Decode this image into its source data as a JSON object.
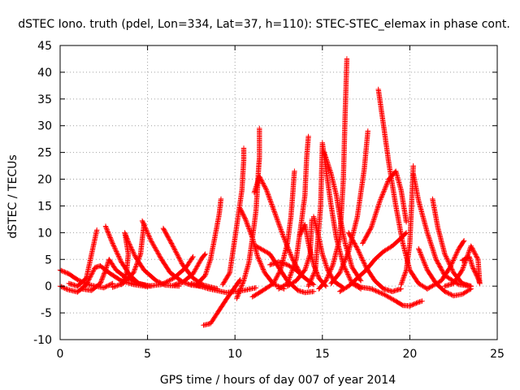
{
  "chart_data": {
    "type": "scatter",
    "title": "dSTEC Iono. truth (pdel, Lon=334, Lat=37, h=110): STEC-STEC_elemax in phase cont.",
    "xlabel": "GPS time / hours of day 007 of year 2014",
    "ylabel": "dSTEC  / TECUs",
    "xlim": [
      0,
      25
    ],
    "ylim": [
      -10,
      45
    ],
    "xticks": [
      0,
      5,
      10,
      15,
      20,
      25
    ],
    "yticks": [
      -10,
      -5,
      0,
      5,
      10,
      15,
      20,
      25,
      30,
      35,
      40,
      45
    ],
    "grid": true,
    "marker": "+",
    "color": "#ff0000",
    "series": [
      {
        "points": [
          [
            0,
            3
          ],
          [
            0.5,
            2.3
          ],
          [
            1,
            1.2
          ],
          [
            1.5,
            0.4
          ],
          [
            2,
            0
          ],
          [
            2.5,
            -0.3
          ],
          [
            3,
            0.5
          ]
        ]
      },
      {
        "points": [
          [
            0,
            0
          ],
          [
            0.4,
            -0.6
          ],
          [
            1,
            -1.1
          ],
          [
            1.5,
            0.3
          ],
          [
            2,
            3.5
          ],
          [
            2.3,
            3.8
          ],
          [
            2.8,
            2.5
          ],
          [
            3.5,
            1
          ],
          [
            4.2,
            0.3
          ],
          [
            5,
            -0.1
          ]
        ]
      },
      {
        "points": [
          [
            0.5,
            0.5
          ],
          [
            1,
            0
          ],
          [
            1.5,
            1.5
          ],
          [
            1.8,
            6
          ],
          [
            2.1,
            10.5
          ]
        ]
      },
      {
        "points": [
          [
            2.6,
            11.2
          ],
          [
            3,
            8
          ],
          [
            3.5,
            4.5
          ],
          [
            4,
            2
          ],
          [
            4.5,
            0.5
          ],
          [
            5,
            0
          ]
        ]
      },
      {
        "points": [
          [
            1.2,
            -0.5
          ],
          [
            1.8,
            -0.8
          ],
          [
            2.3,
            0.5
          ],
          [
            2.6,
            3
          ],
          [
            2.8,
            5
          ],
          [
            3.2,
            3
          ],
          [
            3.8,
            1.5
          ],
          [
            4.5,
            0.5
          ],
          [
            5.2,
            0
          ]
        ]
      },
      {
        "points": [
          [
            3.5,
            0.3
          ],
          [
            3.8,
            2.5
          ],
          [
            3.9,
            6
          ],
          [
            3.7,
            10
          ],
          [
            3.9,
            8.3
          ],
          [
            4.3,
            5.5
          ],
          [
            4.8,
            3
          ],
          [
            5.5,
            1
          ],
          [
            6,
            0.2
          ],
          [
            6.8,
            0
          ]
        ]
      },
      {
        "points": [
          [
            3,
            -0.2
          ],
          [
            3.6,
            0.5
          ],
          [
            4.2,
            2.5
          ],
          [
            4.6,
            6
          ],
          [
            4.8,
            11.6
          ]
        ]
      },
      {
        "points": [
          [
            4.7,
            12.2
          ],
          [
            5.2,
            8.5
          ],
          [
            5.8,
            5
          ],
          [
            6.3,
            2.5
          ],
          [
            7,
            0.8
          ],
          [
            7.5,
            0.2
          ],
          [
            8,
            0
          ]
        ]
      },
      {
        "points": [
          [
            5,
            0
          ],
          [
            5.8,
            0.3
          ],
          [
            6.5,
            1.5
          ],
          [
            7.2,
            3.5
          ],
          [
            7.6,
            5.5
          ]
        ]
      },
      {
        "points": [
          [
            5.9,
            10.8
          ],
          [
            6.4,
            7.8
          ],
          [
            7,
            4
          ],
          [
            7.6,
            1.5
          ],
          [
            8.2,
            0.2
          ],
          [
            9,
            -0.5
          ]
        ]
      },
      {
        "points": [
          [
            6.5,
            0.2
          ],
          [
            7,
            0.7
          ],
          [
            7.6,
            2.3
          ],
          [
            8.1,
            5.2
          ],
          [
            8.3,
            6
          ]
        ]
      },
      {
        "points": [
          [
            7.8,
            0.3
          ],
          [
            8.3,
            2
          ],
          [
            8.6,
            5
          ],
          [
            8.9,
            10
          ],
          [
            9.1,
            13.5
          ],
          [
            9.2,
            16.3
          ]
        ]
      },
      {
        "points": [
          [
            7.5,
            0.5
          ],
          [
            8.5,
            -0.5
          ],
          [
            9.5,
            -1.2
          ],
          [
            10.5,
            -0.8
          ],
          [
            11.2,
            -0.3
          ]
        ]
      },
      {
        "points": [
          [
            8.2,
            -7.3
          ],
          [
            8.6,
            -7
          ],
          [
            9,
            -5
          ],
          [
            9.5,
            -2.5
          ],
          [
            10,
            -0.2
          ],
          [
            10.3,
            1.2
          ]
        ]
      },
      {
        "points": [
          [
            9.3,
            0.3
          ],
          [
            9.7,
            2.5
          ],
          [
            10,
            9
          ],
          [
            10.2,
            13.5
          ],
          [
            10.4,
            18
          ],
          [
            10.5,
            23.5
          ],
          [
            10.5,
            25.8
          ]
        ]
      },
      {
        "points": [
          [
            10.1,
            -2.3
          ],
          [
            10.5,
            1
          ],
          [
            10.8,
            4.5
          ],
          [
            11,
            9
          ],
          [
            11.2,
            14
          ],
          [
            11.3,
            19
          ],
          [
            11.35,
            22
          ],
          [
            11.4,
            24
          ],
          [
            11.4,
            29.5
          ]
        ]
      },
      {
        "points": [
          [
            10.3,
            14.5
          ],
          [
            10.6,
            12.5
          ],
          [
            11,
            9
          ],
          [
            11.3,
            5.5
          ],
          [
            11.7,
            2.5
          ],
          [
            12.2,
            0.4
          ],
          [
            12.8,
            -0.5
          ]
        ]
      },
      {
        "points": [
          [
            11,
            -2
          ],
          [
            11.6,
            -0.8
          ],
          [
            12.2,
            0.5
          ],
          [
            12.6,
            3
          ],
          [
            13,
            8
          ],
          [
            13.2,
            13
          ],
          [
            13.3,
            17
          ],
          [
            13.4,
            21.5
          ]
        ]
      },
      {
        "points": [
          [
            11.1,
            17.5
          ],
          [
            11.4,
            20.5
          ],
          [
            11.8,
            18
          ],
          [
            12.3,
            13.5
          ],
          [
            12.8,
            9
          ],
          [
            13.3,
            5
          ],
          [
            13.8,
            2
          ]
        ]
      },
      {
        "points": [
          [
            11.2,
            7.5
          ],
          [
            12,
            6
          ],
          [
            12.5,
            3.5
          ],
          [
            13,
            1
          ],
          [
            13.6,
            -0.8
          ],
          [
            14,
            -1.2
          ],
          [
            14.5,
            -1
          ]
        ]
      },
      {
        "points": [
          [
            12,
            4
          ],
          [
            12.5,
            4.5
          ],
          [
            13,
            4
          ],
          [
            13.5,
            3
          ],
          [
            14,
            1.5
          ],
          [
            14.5,
            0.3
          ]
        ]
      },
      {
        "points": [
          [
            12.5,
            -0.5
          ],
          [
            13,
            0.5
          ],
          [
            13.5,
            5
          ],
          [
            13.8,
            12
          ],
          [
            14,
            17
          ],
          [
            14.1,
            24
          ],
          [
            14.2,
            28
          ]
        ]
      },
      {
        "points": [
          [
            13.7,
            9.5
          ],
          [
            14,
            11.5
          ],
          [
            14.2,
            8
          ],
          [
            14.5,
            4
          ],
          [
            14.8,
            1.5
          ],
          [
            15.2,
            0
          ]
        ]
      },
      {
        "points": [
          [
            13,
            0
          ],
          [
            13.5,
            1
          ],
          [
            14,
            3
          ],
          [
            14.3,
            6
          ],
          [
            14.4,
            12.5
          ]
        ]
      },
      {
        "points": [
          [
            14.5,
            13
          ],
          [
            14.8,
            9
          ],
          [
            15,
            6
          ],
          [
            15.3,
            3
          ],
          [
            15.7,
            0.8
          ],
          [
            16.2,
            -0.3
          ]
        ]
      },
      {
        "points": [
          [
            14.2,
            0
          ],
          [
            14.6,
            3
          ],
          [
            14.9,
            15
          ],
          [
            15,
            26.8
          ],
          [
            15.2,
            22
          ],
          [
            15.5,
            15
          ],
          [
            15.8,
            9
          ],
          [
            16.2,
            4
          ],
          [
            16.7,
            0.5
          ],
          [
            17.2,
            -0.5
          ]
        ]
      },
      {
        "points": [
          [
            15.1,
            25
          ],
          [
            15.3,
            23
          ],
          [
            15.5,
            21
          ],
          [
            15.8,
            17
          ],
          [
            16,
            13
          ],
          [
            16.3,
            8
          ],
          [
            16.7,
            3.5
          ],
          [
            17.2,
            1
          ]
        ]
      },
      {
        "points": [
          [
            14.8,
            -0.5
          ],
          [
            15.2,
            1
          ],
          [
            15.6,
            4
          ],
          [
            16,
            9
          ],
          [
            16.2,
            20
          ],
          [
            16.3,
            32
          ],
          [
            16.4,
            42.5
          ]
        ]
      },
      {
        "points": [
          [
            15.5,
            0.5
          ],
          [
            16,
            2.5
          ],
          [
            16.5,
            6.5
          ],
          [
            17,
            13
          ],
          [
            17.4,
            22
          ],
          [
            17.6,
            29
          ]
        ]
      },
      {
        "points": [
          [
            16,
            -1
          ],
          [
            16.5,
            0
          ],
          [
            17,
            1.5
          ],
          [
            17.5,
            3
          ],
          [
            18,
            5
          ],
          [
            18.5,
            6.5
          ],
          [
            19,
            7.5
          ],
          [
            19.5,
            9
          ],
          [
            19.8,
            10
          ]
        ]
      },
      {
        "points": [
          [
            16.5,
            10
          ],
          [
            17,
            7
          ],
          [
            17.5,
            3.5
          ],
          [
            18,
            1
          ],
          [
            18.5,
            -0.5
          ],
          [
            19,
            -1
          ],
          [
            19.5,
            -0.5
          ]
        ]
      },
      {
        "points": [
          [
            16.8,
            0.5
          ],
          [
            17.2,
            -0.2
          ],
          [
            17.8,
            -0.5
          ],
          [
            18.5,
            -1.5
          ],
          [
            19.2,
            -2.8
          ],
          [
            19.6,
            -3.6
          ],
          [
            20,
            -3.7
          ],
          [
            20.5,
            -3
          ],
          [
            20.7,
            -2.8
          ]
        ]
      },
      {
        "points": [
          [
            18.2,
            36.8
          ],
          [
            18.5,
            30
          ],
          [
            18.8,
            23
          ],
          [
            19.2,
            15
          ],
          [
            19.6,
            8
          ],
          [
            20,
            3
          ],
          [
            20.5,
            0.5
          ],
          [
            21,
            -0.5
          ]
        ]
      },
      {
        "points": [
          [
            17.3,
            8
          ],
          [
            17.8,
            11
          ],
          [
            18.3,
            16
          ],
          [
            18.8,
            20
          ],
          [
            19.2,
            21.5
          ],
          [
            19.5,
            18
          ],
          [
            19.8,
            12
          ]
        ]
      },
      {
        "points": [
          [
            19.5,
            0.3
          ],
          [
            19.8,
            3
          ],
          [
            20,
            8
          ],
          [
            20.1,
            15
          ],
          [
            20.2,
            22.5
          ]
        ]
      },
      {
        "points": [
          [
            20.2,
            21
          ],
          [
            20.5,
            16
          ],
          [
            21,
            10
          ],
          [
            21.5,
            5
          ],
          [
            22,
            2
          ],
          [
            22.8,
            0.3
          ],
          [
            23.5,
            0
          ]
        ]
      },
      {
        "points": [
          [
            20.5,
            7
          ],
          [
            21,
            3
          ],
          [
            21.5,
            0.5
          ],
          [
            22,
            -1
          ],
          [
            22.5,
            -1.8
          ],
          [
            23,
            -1.5
          ],
          [
            23.5,
            -0.5
          ]
        ]
      },
      {
        "points": [
          [
            21.3,
            16.3
          ],
          [
            21.6,
            11
          ],
          [
            22,
            6
          ],
          [
            22.5,
            2.5
          ],
          [
            23,
            0.5
          ],
          [
            23.5,
            0
          ]
        ]
      },
      {
        "points": [
          [
            21,
            -0.5
          ],
          [
            21.8,
            1
          ],
          [
            22.3,
            3.5
          ],
          [
            22.8,
            7
          ],
          [
            23.1,
            8.5
          ]
        ]
      },
      {
        "points": [
          [
            22,
            0
          ],
          [
            22.5,
            0.5
          ],
          [
            23,
            3
          ],
          [
            23.5,
            7.5
          ],
          [
            23.9,
            5
          ],
          [
            24,
            0.5
          ]
        ]
      },
      {
        "points": [
          [
            23,
            4.8
          ],
          [
            23.4,
            5.5
          ],
          [
            23.6,
            3.5
          ],
          [
            23.9,
            1.5
          ],
          [
            24,
            0.5
          ]
        ]
      }
    ]
  }
}
